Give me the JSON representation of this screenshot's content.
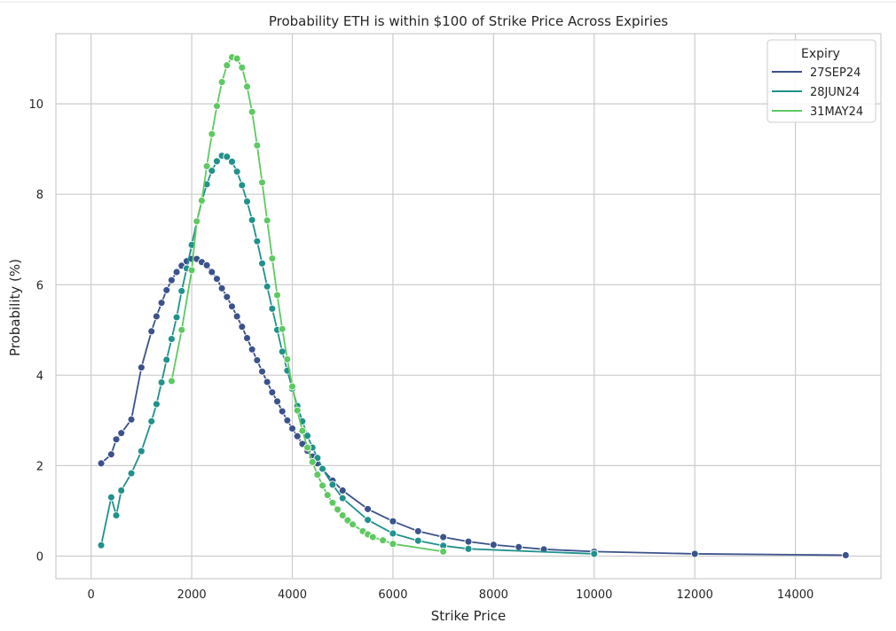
{
  "chart_data": {
    "type": "line",
    "title": "Probability ETH is within $100 of Strike Price Across Expiries",
    "xlabel": "Strike Price",
    "ylabel": "Probability (%)",
    "xlim": [
      -700,
      15700
    ],
    "ylim": [
      -0.5,
      11.55
    ],
    "xticks": [
      0,
      2000,
      4000,
      6000,
      8000,
      10000,
      12000,
      14000
    ],
    "yticks": [
      0,
      2,
      4,
      6,
      8,
      10
    ],
    "grid": true,
    "legend": {
      "title": "Expiry",
      "placement": "top-right"
    },
    "series": [
      {
        "name": "27SEP24",
        "color": "#3b528b",
        "points": [
          [
            200,
            2.05
          ],
          [
            400,
            2.25
          ],
          [
            500,
            2.58
          ],
          [
            600,
            2.72
          ],
          [
            800,
            3.02
          ],
          [
            1000,
            4.17
          ],
          [
            1200,
            4.97
          ],
          [
            1300,
            5.3
          ],
          [
            1400,
            5.6
          ],
          [
            1500,
            5.88
          ],
          [
            1600,
            6.1
          ],
          [
            1700,
            6.28
          ],
          [
            1800,
            6.42
          ],
          [
            1900,
            6.52
          ],
          [
            2000,
            6.57
          ],
          [
            2100,
            6.57
          ],
          [
            2200,
            6.5
          ],
          [
            2300,
            6.43
          ],
          [
            2400,
            6.28
          ],
          [
            2500,
            6.13
          ],
          [
            2600,
            5.92
          ],
          [
            2700,
            5.73
          ],
          [
            2800,
            5.52
          ],
          [
            2900,
            5.3
          ],
          [
            3000,
            5.07
          ],
          [
            3100,
            4.82
          ],
          [
            3200,
            4.57
          ],
          [
            3300,
            4.33
          ],
          [
            3400,
            4.08
          ],
          [
            3500,
            3.85
          ],
          [
            3600,
            3.62
          ],
          [
            3700,
            3.42
          ],
          [
            3800,
            3.2
          ],
          [
            3900,
            3.0
          ],
          [
            4000,
            2.82
          ],
          [
            4100,
            2.65
          ],
          [
            4200,
            2.48
          ],
          [
            4300,
            2.33
          ],
          [
            4400,
            2.2
          ],
          [
            4500,
            2.05
          ],
          [
            4600,
            1.92
          ],
          [
            4800,
            1.67
          ],
          [
            5000,
            1.45
          ],
          [
            5500,
            1.04
          ],
          [
            6000,
            0.77
          ],
          [
            6500,
            0.55
          ],
          [
            7000,
            0.42
          ],
          [
            7500,
            0.32
          ],
          [
            8000,
            0.25
          ],
          [
            8500,
            0.2
          ],
          [
            9000,
            0.15
          ],
          [
            10000,
            0.1
          ],
          [
            12000,
            0.05
          ],
          [
            15000,
            0.02
          ]
        ]
      },
      {
        "name": "28JUN24",
        "color": "#21918c",
        "points": [
          [
            200,
            0.24
          ],
          [
            400,
            1.3
          ],
          [
            500,
            0.9
          ],
          [
            600,
            1.45
          ],
          [
            800,
            1.83
          ],
          [
            1000,
            2.32
          ],
          [
            1200,
            2.98
          ],
          [
            1300,
            3.36
          ],
          [
            1400,
            3.84
          ],
          [
            1500,
            4.34
          ],
          [
            1600,
            4.8
          ],
          [
            1700,
            5.28
          ],
          [
            1800,
            5.86
          ],
          [
            1900,
            6.36
          ],
          [
            2000,
            6.88
          ],
          [
            2100,
            7.39
          ],
          [
            2200,
            7.84
          ],
          [
            2300,
            8.22
          ],
          [
            2400,
            8.52
          ],
          [
            2500,
            8.73
          ],
          [
            2600,
            8.85
          ],
          [
            2700,
            8.83
          ],
          [
            2800,
            8.72
          ],
          [
            2900,
            8.5
          ],
          [
            3000,
            8.2
          ],
          [
            3100,
            7.84
          ],
          [
            3200,
            7.43
          ],
          [
            3300,
            6.96
          ],
          [
            3400,
            6.47
          ],
          [
            3500,
            5.96
          ],
          [
            3600,
            5.47
          ],
          [
            3700,
            5.0
          ],
          [
            3800,
            4.52
          ],
          [
            3900,
            4.1
          ],
          [
            4000,
            3.7
          ],
          [
            4100,
            3.32
          ],
          [
            4200,
            2.98
          ],
          [
            4300,
            2.66
          ],
          [
            4400,
            2.4
          ],
          [
            4500,
            2.17
          ],
          [
            4600,
            1.93
          ],
          [
            4800,
            1.58
          ],
          [
            5000,
            1.28
          ],
          [
            5500,
            0.8
          ],
          [
            6000,
            0.5
          ],
          [
            6500,
            0.34
          ],
          [
            7000,
            0.23
          ],
          [
            7500,
            0.16
          ],
          [
            10000,
            0.05
          ]
        ]
      },
      {
        "name": "31MAY24",
        "color": "#5ec962",
        "points": [
          [
            1600,
            3.87
          ],
          [
            1800,
            5.0
          ],
          [
            2000,
            6.32
          ],
          [
            2100,
            7.4
          ],
          [
            2200,
            7.86
          ],
          [
            2300,
            8.62
          ],
          [
            2400,
            9.33
          ],
          [
            2500,
            9.95
          ],
          [
            2600,
            10.48
          ],
          [
            2700,
            10.85
          ],
          [
            2800,
            11.03
          ],
          [
            2900,
            11.0
          ],
          [
            3000,
            10.8
          ],
          [
            3100,
            10.38
          ],
          [
            3200,
            9.82
          ],
          [
            3300,
            9.08
          ],
          [
            3400,
            8.26
          ],
          [
            3500,
            7.42
          ],
          [
            3600,
            6.58
          ],
          [
            3700,
            5.77
          ],
          [
            3800,
            5.02
          ],
          [
            3900,
            4.35
          ],
          [
            4000,
            3.75
          ],
          [
            4100,
            3.22
          ],
          [
            4200,
            2.77
          ],
          [
            4300,
            2.4
          ],
          [
            4400,
            2.08
          ],
          [
            4500,
            1.8
          ],
          [
            4600,
            1.56
          ],
          [
            4700,
            1.35
          ],
          [
            4800,
            1.18
          ],
          [
            4900,
            1.03
          ],
          [
            5000,
            0.9
          ],
          [
            5100,
            0.79
          ],
          [
            5200,
            0.7
          ],
          [
            5400,
            0.55
          ],
          [
            5500,
            0.48
          ],
          [
            5600,
            0.42
          ],
          [
            5800,
            0.35
          ],
          [
            6000,
            0.27
          ],
          [
            7000,
            0.1
          ]
        ]
      }
    ]
  }
}
